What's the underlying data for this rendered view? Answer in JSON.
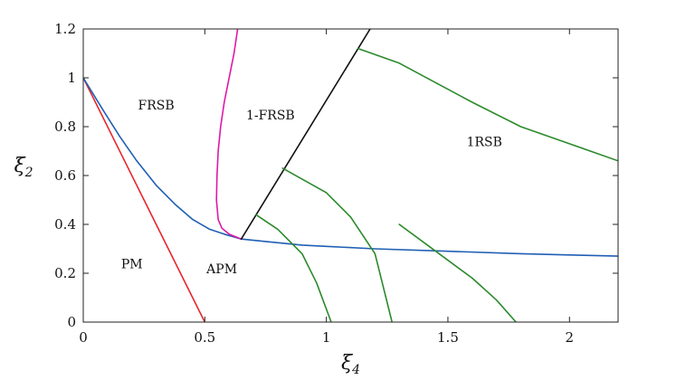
{
  "chart_data": {
    "type": "line",
    "title": "",
    "xlabel": "ξ4",
    "ylabel": "ξ2",
    "xlim": [
      0,
      2.2
    ],
    "ylim": [
      0,
      1.2
    ],
    "x_ticks": [
      0,
      0.5,
      1,
      1.5,
      2
    ],
    "x_tick_labels": [
      "0",
      "0.5",
      "1",
      "1.5",
      "2"
    ],
    "y_ticks": [
      0,
      0.2,
      0.4,
      0.6,
      0.8,
      1,
      1.2
    ],
    "y_tick_labels": [
      "0",
      "0.2",
      "0.4",
      "0.6",
      "0.8",
      "1",
      "1.2"
    ],
    "grid": false,
    "legend": "none",
    "region_labels": [
      {
        "text": "FRSB",
        "x": 0.3,
        "y": 0.87
      },
      {
        "text": "1-FRSB",
        "x": 0.77,
        "y": 0.83
      },
      {
        "text": "1RSB",
        "x": 1.65,
        "y": 0.72
      },
      {
        "text": "PM",
        "x": 0.2,
        "y": 0.22
      },
      {
        "text": "APM",
        "x": 0.57,
        "y": 0.2
      }
    ],
    "series": [
      {
        "color": "#e8262a",
        "points": [
          [
            0,
            1.0
          ],
          [
            0.5,
            0.0
          ]
        ]
      },
      {
        "color": "#1f5fb4",
        "points": [
          [
            0,
            1.0
          ],
          [
            0.08,
            0.87
          ],
          [
            0.15,
            0.76
          ],
          [
            0.22,
            0.66
          ],
          [
            0.3,
            0.56
          ],
          [
            0.38,
            0.48
          ],
          [
            0.45,
            0.42
          ],
          [
            0.52,
            0.38
          ],
          [
            0.58,
            0.36
          ],
          [
            0.65,
            0.34
          ],
          [
            0.75,
            0.33
          ],
          [
            0.9,
            0.315
          ],
          [
            1.0,
            0.31
          ],
          [
            1.2,
            0.3
          ],
          [
            1.5,
            0.29
          ],
          [
            1.8,
            0.28
          ],
          [
            2.0,
            0.275
          ],
          [
            2.2,
            0.27
          ]
        ]
      },
      {
        "color": "#dd1aa8",
        "points": [
          [
            0.65,
            0.34
          ],
          [
            0.6,
            0.36
          ],
          [
            0.57,
            0.385
          ],
          [
            0.555,
            0.42
          ],
          [
            0.548,
            0.5
          ],
          [
            0.55,
            0.6
          ],
          [
            0.555,
            0.7
          ],
          [
            0.565,
            0.8
          ],
          [
            0.58,
            0.9
          ],
          [
            0.6,
            1.0
          ],
          [
            0.62,
            1.1
          ],
          [
            0.635,
            1.2
          ]
        ]
      },
      {
        "color": "#111111",
        "points": [
          [
            0.65,
            0.34
          ],
          [
            1.18,
            1.2
          ]
        ]
      },
      {
        "color": "#2b8a2b",
        "points": [
          [
            0.71,
            0.44
          ],
          [
            0.8,
            0.38
          ],
          [
            0.9,
            0.28
          ],
          [
            0.96,
            0.16
          ],
          [
            1.02,
            0.0
          ]
        ]
      },
      {
        "color": "#2b8a2b",
        "points": [
          [
            0.82,
            0.63
          ],
          [
            1.0,
            0.53
          ],
          [
            1.1,
            0.43
          ],
          [
            1.2,
            0.28
          ],
          [
            1.27,
            0.0
          ]
        ]
      },
      {
        "color": "#2b8a2b",
        "points": [
          [
            1.13,
            1.12
          ],
          [
            1.3,
            1.06
          ],
          [
            1.45,
            0.98
          ],
          [
            1.6,
            0.9
          ],
          [
            1.8,
            0.8
          ],
          [
            2.0,
            0.73
          ],
          [
            2.2,
            0.66
          ]
        ]
      },
      {
        "color": "#2b8a2b",
        "points": [
          [
            1.3,
            0.4
          ],
          [
            1.45,
            0.29
          ],
          [
            1.6,
            0.18
          ],
          [
            1.7,
            0.09
          ],
          [
            1.78,
            0.0
          ]
        ]
      }
    ]
  }
}
